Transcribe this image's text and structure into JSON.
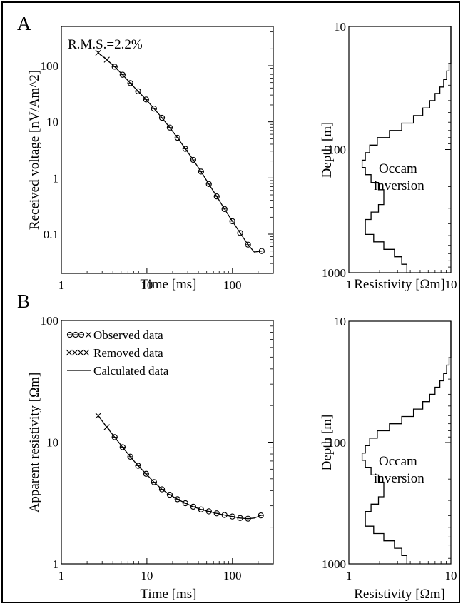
{
  "panels": {
    "a_letter": "A",
    "b_letter": "B",
    "rms": "R.M.S.=2.2%",
    "occam_a_line1": "Occam",
    "occam_a_line2": "inversion",
    "occam_b_line1": "Occam",
    "occam_b_line2": "inversion"
  },
  "legend": {
    "observed": "Observed data",
    "removed": "Removed data",
    "calculated": "Calculated data"
  },
  "colors": {
    "ink": "#000000",
    "background": "#ffffff"
  },
  "chart_data": [
    {
      "id": "voltage",
      "type": "scatter",
      "title": "",
      "xlabel": "Time [ms]",
      "ylabel": "Received voltage [nV/Am^2]",
      "xscale": "log",
      "yscale": "log",
      "xlim": [
        1,
        300
      ],
      "ylim": [
        0.02,
        500
      ],
      "xticks": [
        1,
        10,
        100
      ],
      "xtick_labels": [
        "1",
        "10",
        "100"
      ],
      "yticks": [
        0.1,
        1,
        10,
        100
      ],
      "ytick_labels": [
        "0.1",
        "1",
        "10",
        "100"
      ],
      "annotation": "R.M.S.=2.2%",
      "series": [
        {
          "kind": "removed",
          "x": [
            2.7,
            3.4
          ],
          "y": [
            170,
            128
          ]
        },
        {
          "kind": "observed",
          "x": [
            4.2,
            5.2,
            6.4,
            7.9,
            9.8,
            12.1,
            15.0,
            18.5,
            22.8,
            28.2,
            34.8,
            43.0,
            53.0,
            65.5,
            80.8,
            99.8,
            123,
            152,
            220
          ],
          "y": [
            96,
            69,
            49,
            35,
            25,
            17.2,
            11.8,
            7.9,
            5.2,
            3.3,
            2.1,
            1.3,
            0.78,
            0.47,
            0.28,
            0.17,
            0.105,
            0.065,
            0.05
          ]
        },
        {
          "kind": "calculated",
          "x": [
            2.7,
            3.4,
            4.2,
            5.2,
            6.4,
            7.9,
            9.8,
            12.1,
            15.0,
            18.5,
            22.8,
            28.2,
            34.8,
            43.0,
            53.0,
            65.5,
            80.8,
            99.8,
            123,
            152,
            180,
            220
          ],
          "y": [
            170,
            128,
            96,
            69,
            49,
            35,
            25,
            17.2,
            11.8,
            7.9,
            5.2,
            3.3,
            2.1,
            1.3,
            0.78,
            0.47,
            0.28,
            0.17,
            0.105,
            0.065,
            0.048,
            0.05
          ]
        }
      ]
    },
    {
      "id": "model_a",
      "type": "line",
      "title": "",
      "xlabel": "Resistivity [Ωm]",
      "ylabel": "Depth [m]",
      "xscale": "log",
      "yscale": "log",
      "yinverted": true,
      "xlim": [
        1,
        10
      ],
      "ylim": [
        10,
        1000
      ],
      "xticks": [
        1,
        10
      ],
      "xtick_labels": [
        "1",
        "10"
      ],
      "yticks": [
        10,
        100,
        1000
      ],
      "ytick_labels": [
        "10",
        "100",
        "1000"
      ],
      "annotation": [
        "Occam",
        "inversion"
      ],
      "depth_boundaries": [
        10,
        20,
        23,
        27,
        31,
        35,
        40,
        46,
        53,
        61,
        70,
        80,
        92,
        106,
        122,
        140,
        160,
        185,
        212,
        244,
        280,
        322,
        370,
        425,
        489,
        562,
        646,
        743,
        854,
        1000
      ],
      "resistivity": [
        10,
        9.6,
        9.1,
        8.5,
        7.8,
        7.0,
        6.2,
        5.3,
        4.3,
        3.3,
        2.5,
        1.9,
        1.6,
        1.45,
        1.35,
        1.45,
        1.65,
        1.95,
        2.2,
        2.2,
        1.95,
        1.65,
        1.45,
        1.45,
        1.75,
        2.2,
        2.8,
        3.3,
        3.7
      ]
    },
    {
      "id": "apparent_resistivity",
      "type": "scatter",
      "title": "",
      "xlabel": "Time [ms]",
      "ylabel": "Apparent resistivity [Ωm]",
      "xscale": "log",
      "yscale": "log",
      "xlim": [
        1,
        300
      ],
      "ylim": [
        1,
        100
      ],
      "xticks": [
        1,
        10,
        100
      ],
      "xtick_labels": [
        "1",
        "10",
        "100"
      ],
      "yticks": [
        1,
        10,
        100
      ],
      "ytick_labels": [
        "1",
        "10",
        "100"
      ],
      "legend_position": "top-left",
      "series": [
        {
          "kind": "removed",
          "name": "Removed data",
          "x": [
            2.7,
            3.4
          ],
          "y": [
            16.5,
            13.3
          ]
        },
        {
          "kind": "observed",
          "name": "Observed data",
          "x": [
            4.2,
            5.2,
            6.4,
            7.9,
            9.8,
            12.1,
            15.0,
            18.5,
            22.8,
            28.2,
            34.8,
            43.0,
            53.0,
            65.5,
            80.8,
            99.8,
            123,
            152,
            215
          ],
          "y": [
            11.0,
            9.1,
            7.6,
            6.4,
            5.5,
            4.7,
            4.1,
            3.7,
            3.4,
            3.15,
            2.95,
            2.8,
            2.7,
            2.6,
            2.52,
            2.45,
            2.38,
            2.35,
            2.5
          ]
        },
        {
          "kind": "calculated",
          "name": "Calculated data",
          "x": [
            2.7,
            3.4,
            4.2,
            5.2,
            6.4,
            7.9,
            9.8,
            12.1,
            15.0,
            18.5,
            22.8,
            28.2,
            34.8,
            43.0,
            53.0,
            65.5,
            80.8,
            99.8,
            123,
            152,
            180,
            215
          ],
          "y": [
            16.5,
            13.3,
            11.0,
            9.1,
            7.6,
            6.4,
            5.5,
            4.7,
            4.1,
            3.7,
            3.4,
            3.15,
            2.95,
            2.8,
            2.7,
            2.6,
            2.52,
            2.45,
            2.38,
            2.35,
            2.38,
            2.5
          ]
        }
      ]
    },
    {
      "id": "model_b",
      "type": "line",
      "title": "",
      "xlabel": "Resistivity [Ωm]",
      "ylabel": "Depth [m]",
      "xscale": "log",
      "yscale": "log",
      "yinverted": true,
      "xlim": [
        1,
        10
      ],
      "ylim": [
        10,
        1000
      ],
      "xticks": [
        1,
        10
      ],
      "xtick_labels": [
        "1",
        "10"
      ],
      "yticks": [
        10,
        100,
        1000
      ],
      "ytick_labels": [
        "10",
        "100",
        "1000"
      ],
      "annotation": [
        "Occam",
        "inversion"
      ],
      "depth_boundaries": [
        10,
        20,
        23,
        27,
        31,
        35,
        40,
        46,
        53,
        61,
        70,
        80,
        92,
        106,
        122,
        140,
        160,
        185,
        212,
        244,
        280,
        322,
        370,
        425,
        489,
        562,
        646,
        743,
        854,
        1000
      ],
      "resistivity": [
        10,
        9.6,
        9.1,
        8.5,
        7.8,
        7.0,
        6.2,
        5.3,
        4.3,
        3.3,
        2.5,
        1.9,
        1.6,
        1.45,
        1.35,
        1.45,
        1.65,
        1.95,
        2.2,
        2.2,
        1.95,
        1.65,
        1.45,
        1.45,
        1.75,
        2.2,
        2.8,
        3.3,
        3.7
      ]
    }
  ]
}
